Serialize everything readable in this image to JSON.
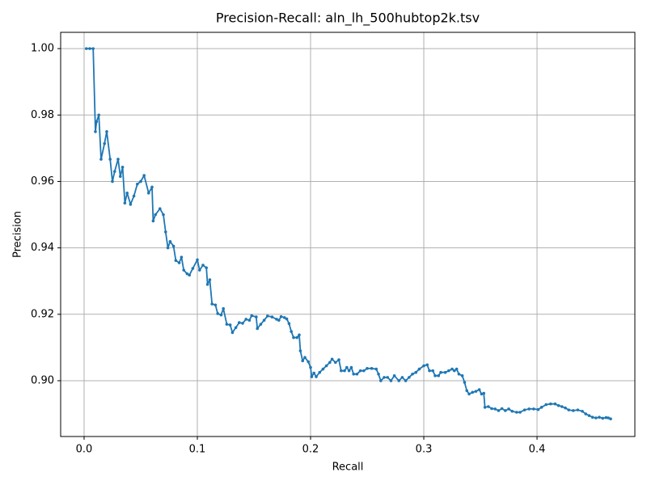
{
  "chart_data": {
    "type": "line",
    "title": "Precision-Recall: aln_lh_500hubtop2k.tsv",
    "x_label": "Recall",
    "y_label": "Precision",
    "grid": true,
    "xlim": [
      -0.0207,
      0.4864
    ],
    "ylim": [
      0.8832,
      1.0049
    ],
    "xticks": [
      {
        "value": 0,
        "label": "0.0"
      },
      {
        "value": 0.1,
        "label": "0.1"
      },
      {
        "value": 0.2,
        "label": "0.2"
      },
      {
        "value": 0.3,
        "label": "0.3"
      },
      {
        "value": 0.4,
        "label": "0.4"
      }
    ],
    "yticks": [
      {
        "value": 0.9,
        "label": "0.90"
      },
      {
        "value": 0.92,
        "label": "0.92"
      },
      {
        "value": 0.94,
        "label": "0.94"
      },
      {
        "value": 0.96,
        "label": "0.96"
      },
      {
        "value": 0.98,
        "label": "0.98"
      },
      {
        "value": 1,
        "label": "1.00"
      }
    ],
    "series": [
      {
        "color": "#1f77b4",
        "x": [
          0.002,
          0.005,
          0.008,
          0.01,
          0.011,
          0.013,
          0.015,
          0.018,
          0.02,
          0.023,
          0.025,
          0.027,
          0.03,
          0.032,
          0.034,
          0.036,
          0.038,
          0.041,
          0.044,
          0.047,
          0.05,
          0.053,
          0.057,
          0.06,
          0.061,
          0.063,
          0.067,
          0.07,
          0.072,
          0.074,
          0.076,
          0.079,
          0.081,
          0.084,
          0.086,
          0.088,
          0.091,
          0.093,
          0.096,
          0.1,
          0.102,
          0.105,
          0.108,
          0.109,
          0.111,
          0.113,
          0.116,
          0.118,
          0.121,
          0.123,
          0.126,
          0.129,
          0.131,
          0.134,
          0.137,
          0.14,
          0.143,
          0.146,
          0.148,
          0.152,
          0.153,
          0.156,
          0.159,
          0.162,
          0.166,
          0.17,
          0.172,
          0.174,
          0.177,
          0.179,
          0.181,
          0.183,
          0.185,
          0.188,
          0.19,
          0.191,
          0.193,
          0.195,
          0.198,
          0.2,
          0.201,
          0.203,
          0.205,
          0.208,
          0.211,
          0.214,
          0.217,
          0.219,
          0.222,
          0.225,
          0.227,
          0.23,
          0.232,
          0.234,
          0.236,
          0.238,
          0.241,
          0.244,
          0.247,
          0.25,
          0.254,
          0.258,
          0.26,
          0.262,
          0.265,
          0.268,
          0.271,
          0.274,
          0.278,
          0.281,
          0.284,
          0.287,
          0.29,
          0.293,
          0.296,
          0.3,
          0.303,
          0.305,
          0.308,
          0.31,
          0.313,
          0.315,
          0.319,
          0.322,
          0.325,
          0.327,
          0.329,
          0.331,
          0.334,
          0.336,
          0.338,
          0.34,
          0.343,
          0.346,
          0.349,
          0.351,
          0.353,
          0.354,
          0.357,
          0.36,
          0.363,
          0.366,
          0.369,
          0.372,
          0.375,
          0.378,
          0.382,
          0.385,
          0.389,
          0.393,
          0.397,
          0.401,
          0.404,
          0.408,
          0.412,
          0.416,
          0.419,
          0.422,
          0.425,
          0.428,
          0.432,
          0.436,
          0.44,
          0.443,
          0.446,
          0.449,
          0.452,
          0.455,
          0.458,
          0.461,
          0.463,
          0.465
        ],
        "values": [
          1.0,
          1.0,
          1.0,
          0.975,
          0.978,
          0.98,
          0.9667,
          0.9714,
          0.975,
          0.9667,
          0.96,
          0.963,
          0.9667,
          0.9615,
          0.9643,
          0.9535,
          0.9565,
          0.9531,
          0.9556,
          0.9592,
          0.96,
          0.9618,
          0.9565,
          0.9583,
          0.9481,
          0.95,
          0.9518,
          0.95,
          0.9448,
          0.94,
          0.9419,
          0.9405,
          0.9362,
          0.9355,
          0.9372,
          0.9333,
          0.9322,
          0.9318,
          0.9338,
          0.9364,
          0.9333,
          0.9348,
          0.934,
          0.929,
          0.9304,
          0.9231,
          0.9228,
          0.9202,
          0.9198,
          0.9217,
          0.917,
          0.9168,
          0.9145,
          0.916,
          0.9175,
          0.9173,
          0.9185,
          0.9182,
          0.9196,
          0.9192,
          0.9157,
          0.917,
          0.9182,
          0.9195,
          0.9192,
          0.9185,
          0.9182,
          0.9193,
          0.919,
          0.9186,
          0.9172,
          0.9148,
          0.913,
          0.913,
          0.9138,
          0.909,
          0.906,
          0.907,
          0.9057,
          0.904,
          0.9012,
          0.9023,
          0.9012,
          0.9025,
          0.9035,
          0.9045,
          0.9055,
          0.9065,
          0.9055,
          0.9063,
          0.903,
          0.903,
          0.904,
          0.903,
          0.904,
          0.902,
          0.902,
          0.903,
          0.903,
          0.9037,
          0.9037,
          0.9035,
          0.902,
          0.9,
          0.901,
          0.901,
          0.9,
          0.9015,
          0.9,
          0.901,
          0.9,
          0.901,
          0.902,
          0.9025,
          0.9035,
          0.9045,
          0.9048,
          0.903,
          0.903,
          0.9015,
          0.9015,
          0.9025,
          0.9025,
          0.903,
          0.9035,
          0.903,
          0.9035,
          0.902,
          0.9015,
          0.8995,
          0.897,
          0.896,
          0.8965,
          0.8968,
          0.8973,
          0.896,
          0.8962,
          0.892,
          0.8922,
          0.8916,
          0.8915,
          0.891,
          0.8916,
          0.891,
          0.8915,
          0.8908,
          0.8905,
          0.8905,
          0.8912,
          0.8915,
          0.8915,
          0.8913,
          0.892,
          0.8928,
          0.893,
          0.893,
          0.8925,
          0.8922,
          0.8918,
          0.8912,
          0.891,
          0.8912,
          0.8908,
          0.89,
          0.8895,
          0.889,
          0.8888,
          0.889,
          0.8887,
          0.8889,
          0.8888,
          0.8885
        ]
      }
    ]
  }
}
